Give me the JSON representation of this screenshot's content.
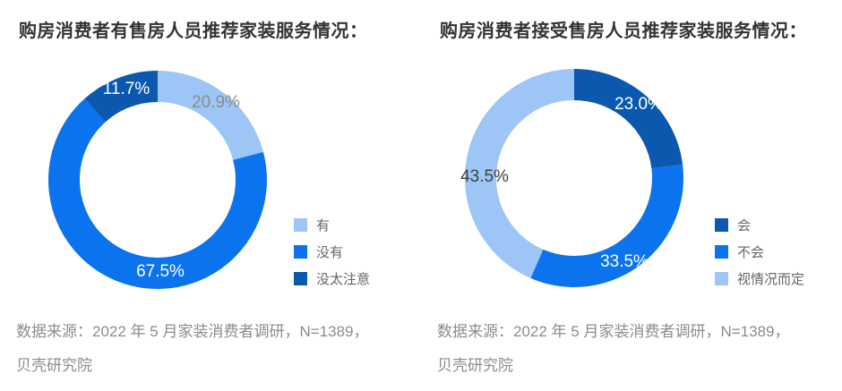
{
  "chart_data": [
    {
      "type": "pie",
      "subtype": "donut",
      "title": "购房消费者有售房人员推荐家装服务情况：",
      "labels": [
        "有",
        "没有",
        "没太注意"
      ],
      "values": [
        20.9,
        67.5,
        11.7
      ],
      "value_labels": [
        "20.9%",
        "67.5%",
        "11.7%"
      ],
      "colors": [
        "#9dc5f6",
        "#0b73ee",
        "#0b58ae"
      ],
      "value_label_colors": [
        "#8a8a8a",
        "#ffffff",
        "#ffffff"
      ],
      "start_angle": "top",
      "direction": "clockwise",
      "legend_position": "right-middle",
      "source_lines": [
        "数据来源：2022 年 5 月家装消费者调研，N=1389，",
        "贝壳研究院"
      ]
    },
    {
      "type": "pie",
      "subtype": "donut",
      "title": "购房消费者接受售房人员推荐家装服务情况：",
      "labels": [
        "会",
        "不会",
        "视情况而定"
      ],
      "values": [
        23.0,
        33.5,
        43.5
      ],
      "value_labels": [
        "23.0%",
        "33.5%",
        "43.5%"
      ],
      "colors": [
        "#0b58ae",
        "#0b73ee",
        "#9dc5f6"
      ],
      "value_label_colors": [
        "#ffffff",
        "#ffffff",
        "#404040"
      ],
      "start_angle": "top",
      "direction": "clockwise",
      "legend_position": "right-middle",
      "source_lines": [
        "数据来源：2022 年 5 月家装消费者调研，N=1389，",
        "贝壳研究院"
      ]
    }
  ]
}
